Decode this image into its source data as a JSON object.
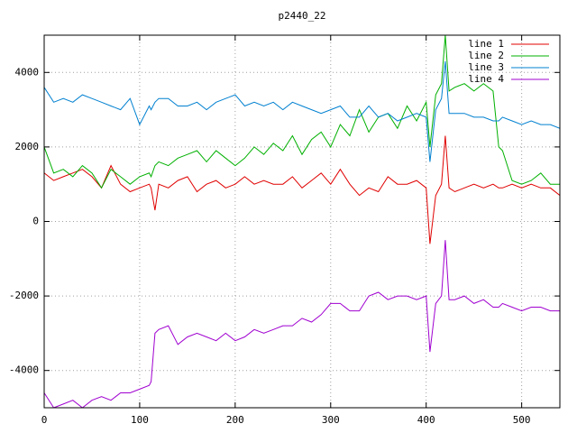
{
  "chart_data": {
    "type": "line",
    "title": "p2440_22",
    "x": [
      0,
      10,
      20,
      30,
      40,
      50,
      60,
      70,
      80,
      90,
      100,
      110,
      112,
      116,
      120,
      130,
      140,
      150,
      160,
      170,
      180,
      190,
      200,
      210,
      220,
      230,
      240,
      250,
      260,
      270,
      280,
      290,
      300,
      310,
      320,
      330,
      340,
      350,
      360,
      370,
      380,
      390,
      400,
      404,
      410,
      416,
      420,
      424,
      430,
      440,
      450,
      460,
      470,
      476,
      480,
      490,
      500,
      510,
      520,
      530,
      540
    ],
    "series": [
      {
        "name": "line 1",
        "color": "#e00000",
        "values": [
          1300,
          1100,
          1200,
          1300,
          1400,
          1200,
          900,
          1500,
          1000,
          800,
          900,
          1000,
          900,
          300,
          1000,
          900,
          1100,
          1200,
          800,
          1000,
          1100,
          900,
          1000,
          1200,
          1000,
          1100,
          1000,
          1000,
          1200,
          900,
          1100,
          1300,
          1000,
          1400,
          1000,
          700,
          900,
          800,
          1200,
          1000,
          1000,
          1100,
          900,
          -600,
          700,
          1000,
          2300,
          900,
          800,
          900,
          1000,
          900,
          1000,
          900,
          900,
          1000,
          900,
          1000,
          900,
          900,
          700
        ]
      },
      {
        "name": "line 2",
        "color": "#00b000",
        "values": [
          2000,
          1300,
          1400,
          1200,
          1500,
          1300,
          900,
          1400,
          1200,
          1000,
          1200,
          1300,
          1200,
          1500,
          1600,
          1500,
          1700,
          1800,
          1900,
          1600,
          1900,
          1700,
          1500,
          1700,
          2000,
          1800,
          2100,
          1900,
          2300,
          1800,
          2200,
          2400,
          2000,
          2600,
          2300,
          3000,
          2400,
          2800,
          2900,
          2500,
          3100,
          2700,
          3200,
          2000,
          3400,
          3700,
          5000,
          3500,
          3600,
          3700,
          3500,
          3700,
          3500,
          2000,
          1900,
          1100,
          1000,
          1100,
          1300,
          1000,
          1000
        ]
      },
      {
        "name": "line 3",
        "color": "#0080d0",
        "values": [
          3600,
          3200,
          3300,
          3200,
          3400,
          3300,
          3200,
          3100,
          3000,
          3300,
          2600,
          3100,
          3000,
          3200,
          3300,
          3300,
          3100,
          3100,
          3200,
          3000,
          3200,
          3300,
          3400,
          3100,
          3200,
          3100,
          3200,
          3000,
          3200,
          3100,
          3000,
          2900,
          3000,
          3100,
          2800,
          2800,
          3100,
          2800,
          2900,
          2700,
          2800,
          2900,
          2800,
          1600,
          3000,
          3300,
          4300,
          2900,
          2900,
          2900,
          2800,
          2800,
          2700,
          2700,
          2800,
          2700,
          2600,
          2700,
          2600,
          2600,
          2500
        ]
      },
      {
        "name": "line 4",
        "color": "#a000d0",
        "values": [
          -4600,
          -5000,
          -4900,
          -4800,
          -5000,
          -4800,
          -4700,
          -4800,
          -4600,
          -4600,
          -4500,
          -4400,
          -4300,
          -3000,
          -2900,
          -2800,
          -3300,
          -3100,
          -3000,
          -3100,
          -3200,
          -3000,
          -3200,
          -3100,
          -2900,
          -3000,
          -2900,
          -2800,
          -2800,
          -2600,
          -2700,
          -2500,
          -2200,
          -2200,
          -2400,
          -2400,
          -2000,
          -1900,
          -2100,
          -2000,
          -2000,
          -2100,
          -2000,
          -3500,
          -2200,
          -2000,
          -500,
          -2100,
          -2100,
          -2000,
          -2200,
          -2100,
          -2300,
          -2300,
          -2200,
          -2300,
          -2400,
          -2300,
          -2300,
          -2400,
          -2400
        ]
      }
    ],
    "xlim": [
      0,
      540
    ],
    "ylim": [
      -5000,
      5000
    ],
    "xticks": [
      0,
      100,
      200,
      300,
      400,
      500
    ],
    "yticks": [
      -4000,
      -2000,
      0,
      2000,
      4000
    ],
    "grid": true,
    "legend": "top-right"
  }
}
